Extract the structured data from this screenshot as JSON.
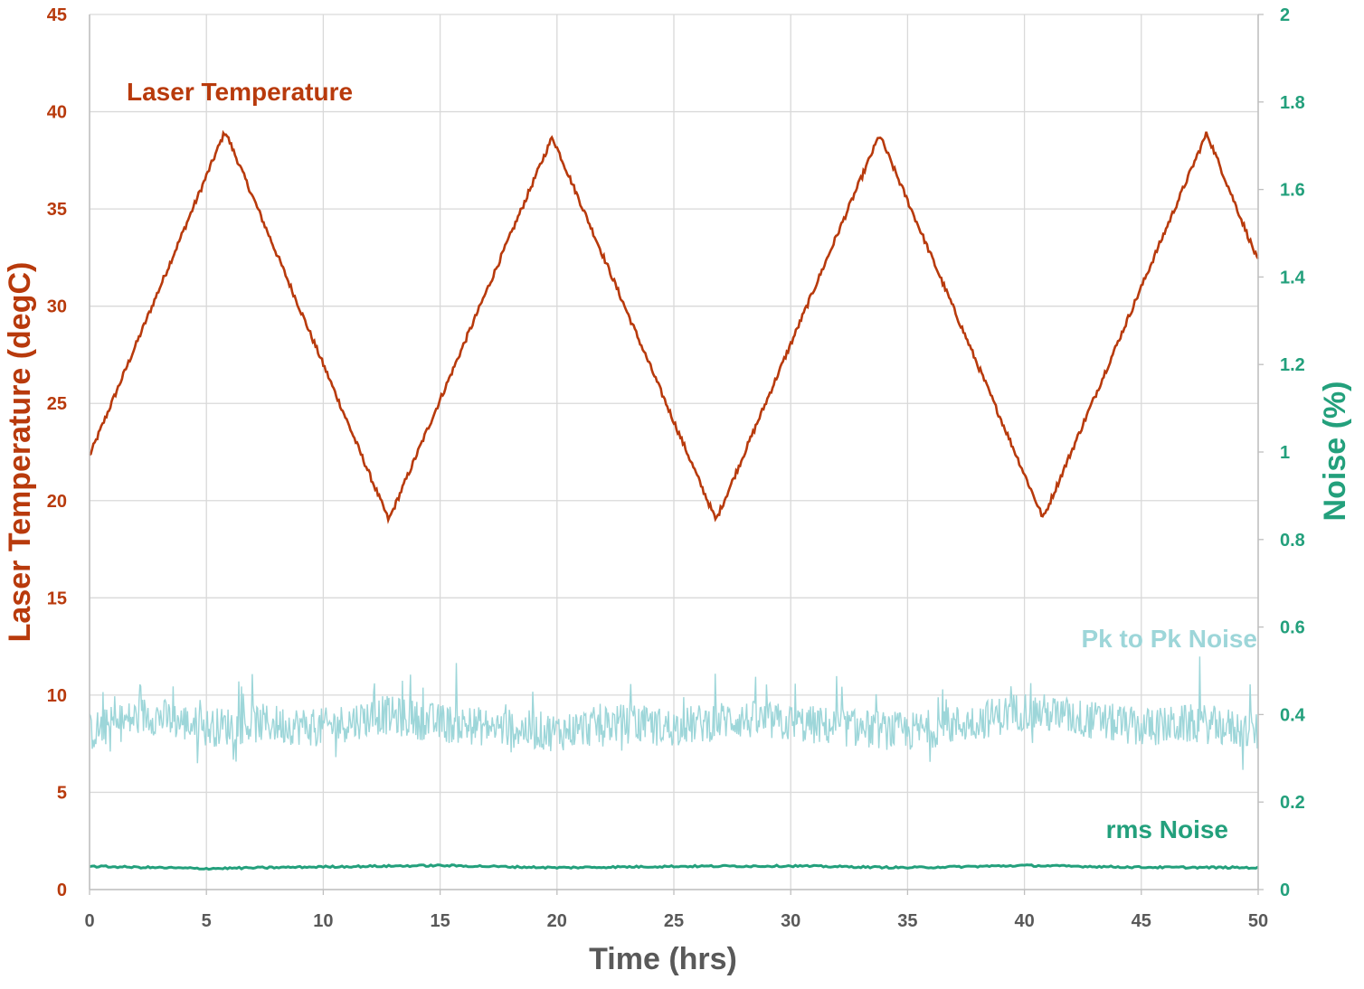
{
  "chart_data": {
    "type": "line",
    "title": "",
    "xlabel": "Time (hrs)",
    "ylabel_left": "Laser Temperature (degC)",
    "ylabel_right": "Noise (%)",
    "xlim": [
      0,
      50
    ],
    "ylim_left": [
      0,
      45
    ],
    "ylim_right": [
      0,
      2
    ],
    "x_ticks": [
      "0",
      "5",
      "10",
      "15",
      "20",
      "25",
      "30",
      "35",
      "40",
      "45",
      "50"
    ],
    "y_left_ticks": [
      "0",
      "5",
      "10",
      "15",
      "20",
      "25",
      "30",
      "35",
      "40",
      "45"
    ],
    "y_right_ticks": [
      "0",
      "0.2",
      "0.4",
      "0.6",
      "0.8",
      "1",
      "1.2",
      "1.4",
      "1.6",
      "1.8",
      "2"
    ],
    "grid": true,
    "colors": {
      "temperature": "#b83a0c",
      "pk_to_pk": "#9dd6d9",
      "rms": "#23a07c",
      "grid": "#d9d9d9",
      "x_text": "#595959"
    },
    "annotations": {
      "temperature": "Laser Temperature",
      "pk_to_pk": "Pk to Pk Noise",
      "rms": "rms Noise"
    },
    "series": [
      {
        "name": "Laser Temperature",
        "axis": "left",
        "x": [
          0,
          5.8,
          12.8,
          19.8,
          26.8,
          33.8,
          40.8,
          47.8,
          50
        ],
        "values": [
          22.3,
          39.0,
          19.0,
          38.7,
          19.0,
          38.8,
          19.1,
          38.9,
          32.3
        ]
      },
      {
        "name": "Pk to Pk Noise",
        "axis": "right",
        "x": [
          0,
          2.5,
          5,
          7.5,
          10,
          12.5,
          15,
          17.5,
          20,
          22.5,
          25,
          27.5,
          30,
          32.5,
          35,
          37.5,
          40,
          42.5,
          45,
          47.5,
          50
        ],
        "values": [
          0.36,
          0.4,
          0.37,
          0.38,
          0.37,
          0.4,
          0.38,
          0.37,
          0.36,
          0.38,
          0.37,
          0.39,
          0.38,
          0.37,
          0.36,
          0.38,
          0.41,
          0.39,
          0.37,
          0.38,
          0.36
        ],
        "fluctuation_range": [
          0.27,
          0.58
        ]
      },
      {
        "name": "rms Noise",
        "axis": "right",
        "x": [
          0,
          5,
          10,
          15,
          20,
          25,
          30,
          35,
          40,
          45,
          50
        ],
        "values": [
          0.053,
          0.048,
          0.052,
          0.055,
          0.05,
          0.053,
          0.054,
          0.05,
          0.055,
          0.051,
          0.05
        ]
      }
    ]
  }
}
